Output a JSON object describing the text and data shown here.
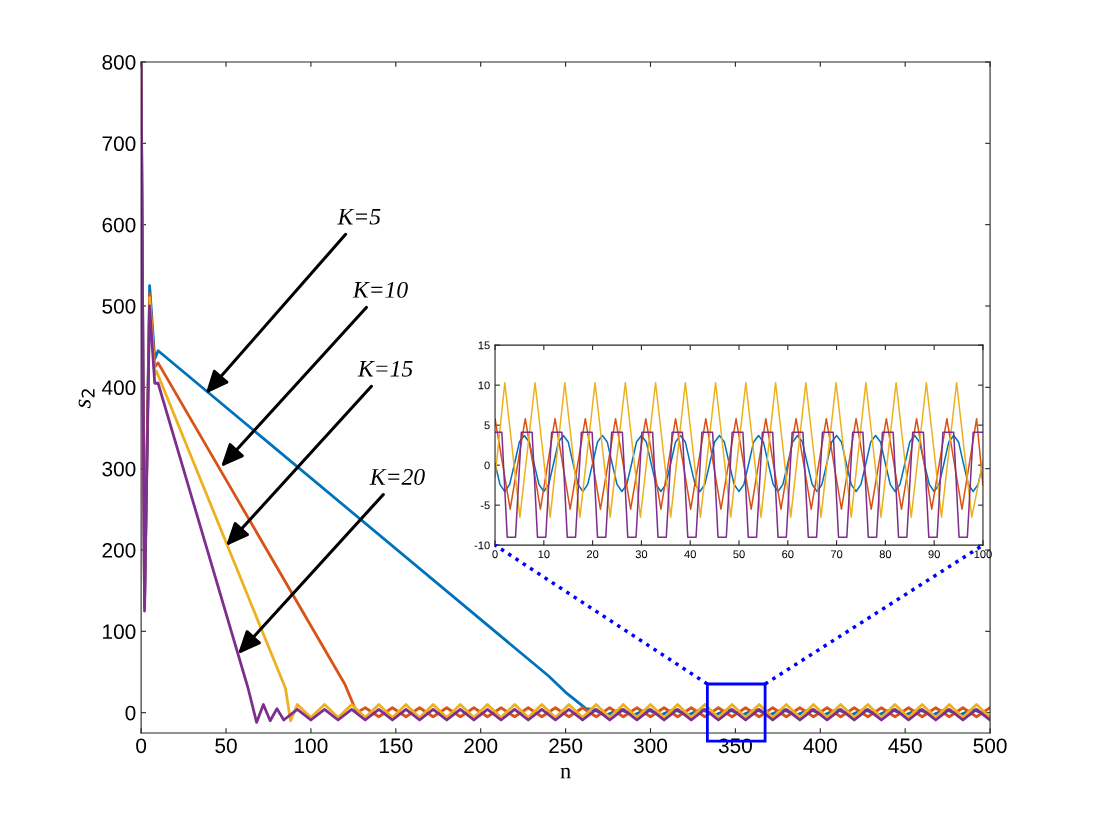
{
  "chart_data": [
    {
      "type": "line",
      "xlabel": "n",
      "ylabel": "s$_{2}$",
      "xlim": [
        0,
        500
      ],
      "ylim": [
        -25,
        800
      ],
      "xticks": [
        0,
        50,
        100,
        150,
        200,
        250,
        300,
        350,
        400,
        450,
        500
      ],
      "yticks": [
        0,
        100,
        200,
        300,
        400,
        500,
        600,
        700,
        800
      ],
      "grid": false,
      "legend": false,
      "annotations": [
        {
          "text": "K=5",
          "x": 38,
          "y": 392
        },
        {
          "text": "K=10",
          "x": 47,
          "y": 302
        },
        {
          "text": "K=15",
          "x": 50,
          "y": 205
        },
        {
          "text": "K=20",
          "x": 57,
          "y": 72
        }
      ],
      "series": [
        {
          "color": "#0072bd",
          "x": [
            0,
            2,
            5,
            8,
            10,
            240,
            250,
            262,
            266,
            274,
            282,
            290,
            298,
            306,
            314,
            322,
            330,
            338,
            346,
            354,
            362,
            370,
            378,
            386,
            394,
            402,
            410,
            418,
            426,
            434,
            442,
            450,
            458,
            466,
            474,
            482,
            490,
            498
          ],
          "values": [
            800,
            130,
            525,
            435,
            445,
            45,
            25,
            5,
            4,
            -3,
            4,
            -3,
            4,
            -3,
            4,
            -3,
            4,
            -3,
            4,
            -3,
            4,
            -3,
            4,
            -3,
            4,
            -3,
            4,
            -3,
            4,
            -3,
            4,
            -3,
            4,
            -3,
            4,
            -3,
            4,
            -3
          ]
        },
        {
          "color": "#d95319",
          "x": [
            0,
            2,
            5,
            8,
            10,
            120,
            127,
            132,
            140,
            148,
            156,
            164,
            172,
            180,
            188,
            196,
            204,
            212,
            220,
            228,
            236,
            244,
            252,
            260,
            268,
            276,
            284,
            292,
            300,
            308,
            316,
            324,
            332,
            340,
            348,
            356,
            364,
            372,
            380,
            388,
            396,
            404,
            412,
            420,
            428,
            436,
            444,
            452,
            460,
            468,
            476,
            484,
            492,
            500
          ],
          "values": [
            800,
            130,
            515,
            425,
            430,
            35,
            0,
            6,
            -5,
            6,
            -5,
            6,
            -5,
            6,
            -5,
            6,
            -5,
            6,
            -5,
            6,
            -5,
            6,
            -5,
            6,
            -5,
            6,
            -5,
            6,
            -5,
            6,
            -5,
            6,
            -5,
            6,
            -5,
            6,
            -5,
            6,
            -5,
            6,
            -5,
            6,
            -5,
            6,
            -5,
            6,
            -5,
            6,
            -5,
            6,
            -5,
            6,
            -5,
            6
          ]
        },
        {
          "color": "#edb120",
          "x": [
            5,
            8,
            9,
            85,
            88,
            92,
            100,
            108,
            116,
            124,
            132,
            140,
            148,
            156,
            164,
            172,
            180,
            188,
            196,
            204,
            212,
            220,
            228,
            236,
            244,
            252,
            260,
            268,
            276,
            284,
            292,
            300,
            308,
            316,
            324,
            332,
            340,
            348,
            356,
            364,
            372,
            380,
            388,
            396,
            404,
            412,
            420,
            428,
            436,
            444,
            452,
            460,
            468,
            476,
            484,
            492,
            500
          ],
          "values": [
            510,
            415,
            420,
            30,
            -10,
            10,
            -6,
            10,
            -6,
            10,
            -6,
            10,
            -6,
            10,
            -6,
            10,
            -6,
            10,
            -6,
            10,
            -6,
            10,
            -6,
            10,
            -6,
            10,
            -6,
            10,
            -6,
            10,
            -6,
            10,
            -6,
            10,
            -6,
            10,
            -6,
            10,
            -6,
            10,
            -6,
            10,
            -6,
            10,
            -6,
            10,
            -6,
            10,
            -6,
            10,
            -6,
            10,
            -6,
            10,
            -6,
            10,
            -6
          ]
        },
        {
          "color": "#7e2f8e",
          "x": [
            0,
            2,
            5,
            8,
            10,
            63,
            68,
            72,
            76,
            80,
            84,
            92,
            100,
            108,
            116,
            124,
            132,
            140,
            148,
            156,
            164,
            172,
            180,
            188,
            196,
            204,
            212,
            220,
            228,
            236,
            244,
            252,
            260,
            268,
            276,
            284,
            292,
            300,
            308,
            316,
            324,
            332,
            340,
            348,
            356,
            364,
            372,
            380,
            388,
            396,
            404,
            412,
            420,
            428,
            436,
            444,
            452,
            460,
            468,
            476,
            484,
            492,
            500
          ],
          "values": [
            800,
            125,
            500,
            405,
            405,
            30,
            -12,
            10,
            -10,
            5,
            -9,
            4,
            -9,
            4,
            -9,
            4,
            -9,
            4,
            -9,
            4,
            -9,
            4,
            -9,
            4,
            -9,
            4,
            -9,
            4,
            -9,
            4,
            -9,
            4,
            -9,
            4,
            -9,
            4,
            -9,
            4,
            -9,
            4,
            -9,
            4,
            -9,
            4,
            -9,
            4,
            -9,
            4,
            -9,
            4,
            -9,
            4,
            -9,
            4,
            -9,
            4,
            -9,
            4,
            -9,
            4,
            -9,
            4,
            -9
          ]
        }
      ]
    },
    {
      "type": "line",
      "xlim": [
        0,
        100
      ],
      "ylim": [
        -10,
        15
      ],
      "xticks": [
        0,
        10,
        20,
        30,
        40,
        50,
        60,
        70,
        80,
        90,
        100
      ],
      "yticks": [
        -10,
        -5,
        0,
        5,
        10,
        15
      ],
      "grid": false,
      "legend": false,
      "series": [
        {
          "color": "#0072bd",
          "x": [
            0,
            1,
            2,
            3,
            4,
            5,
            6,
            7,
            8,
            9,
            10,
            11,
            12,
            13,
            14,
            15,
            16,
            17,
            18,
            19,
            20,
            21,
            22,
            23,
            24,
            25,
            26,
            27,
            28,
            29,
            30,
            31,
            32,
            33,
            34,
            35,
            36,
            37,
            38,
            39,
            40,
            41,
            42,
            43,
            44,
            45,
            46,
            47,
            48,
            49,
            50,
            51,
            52,
            53,
            54,
            55,
            56,
            57,
            58,
            59,
            60,
            61,
            62,
            63,
            64,
            65,
            66,
            67,
            68,
            69,
            70,
            71,
            72,
            73,
            74,
            75,
            76,
            77,
            78,
            79,
            80,
            81,
            82,
            83,
            84,
            85,
            86,
            87,
            88,
            89,
            90,
            91,
            92,
            93,
            94,
            95,
            96,
            97,
            98,
            99,
            100
          ],
          "values": [
            0.2,
            -2.4,
            -3.3,
            -2.4,
            0.2,
            2.9,
            3.7,
            2.9,
            0.2,
            -2.4,
            -3.3,
            -2.4,
            0.2,
            2.9,
            3.7,
            2.9,
            0.2,
            -2.4,
            -3.3,
            -2.4,
            0.2,
            2.9,
            3.7,
            2.9,
            0.2,
            -2.4,
            -3.3,
            -2.4,
            0.2,
            2.9,
            3.7,
            2.9,
            0.2,
            -2.4,
            -3.3,
            -2.4,
            0.2,
            2.9,
            3.7,
            2.9,
            0.2,
            -2.4,
            -3.3,
            -2.4,
            0.2,
            2.9,
            3.7,
            2.9,
            0.2,
            -2.4,
            -3.3,
            -2.4,
            0.2,
            2.9,
            3.7,
            2.9,
            0.2,
            -2.4,
            -3.3,
            -2.4,
            0.2,
            2.9,
            3.7,
            2.9,
            0.2,
            -2.4,
            -3.3,
            -2.4,
            0.2,
            2.9,
            3.7,
            2.9,
            0.2,
            -2.4,
            -3.3,
            -2.4,
            0.2,
            2.9,
            3.7,
            2.9,
            0.2,
            -2.4,
            -3.3,
            -2.4,
            0.2,
            2.9,
            3.7,
            2.9,
            0.2,
            -2.4,
            -3.3,
            -2.4,
            0.2,
            2.9,
            3.7,
            2.9,
            0.2,
            -2.4,
            -3.3,
            -2.4,
            0.2
          ]
        },
        {
          "color": "#d95319",
          "x": [
            0,
            3.1,
            6.2,
            9.3,
            12.3,
            15.4,
            18.5,
            21.6,
            24.7,
            27.8,
            30.9,
            34.0,
            37.0,
            40.1,
            43.2,
            46.3,
            49.4,
            52.5,
            55.5,
            58.6,
            61.7,
            64.8,
            67.9,
            71.0,
            74.0,
            77.1,
            80.2,
            83.3,
            86.4,
            89.5,
            92.6,
            95.7,
            98.7,
            100
          ],
          "values": [
            5.8,
            -5.5,
            5.8,
            -5.5,
            5.8,
            -5.5,
            5.8,
            -5.5,
            5.8,
            -5.5,
            5.8,
            -5.5,
            5.8,
            -5.5,
            5.8,
            -5.5,
            5.8,
            -5.5,
            5.8,
            -5.5,
            5.8,
            -5.5,
            5.8,
            -5.5,
            5.8,
            -5.5,
            5.8,
            -5.5,
            5.8,
            -5.5,
            5.8,
            -5.5,
            5.8,
            -2.5
          ]
        },
        {
          "color": "#edb120",
          "x": [
            0,
            2.0,
            5.1,
            8.2,
            11.3,
            14.3,
            17.4,
            20.5,
            23.6,
            26.7,
            29.8,
            32.9,
            36.0,
            39.0,
            42.1,
            45.2,
            48.3,
            51.4,
            54.5,
            57.5,
            60.6,
            63.7,
            66.8,
            69.9,
            73.0,
            76.0,
            79.1,
            82.2,
            85.3,
            88.4,
            91.5,
            94.6,
            97.7,
            100
          ],
          "values": [
            -1.5,
            10.3,
            -6.5,
            10.3,
            -6.5,
            10.3,
            -6.5,
            10.3,
            -6.5,
            10.3,
            -6.5,
            10.3,
            -6.5,
            10.3,
            -6.5,
            10.3,
            -6.5,
            10.3,
            -6.5,
            10.3,
            -6.5,
            10.3,
            -6.5,
            10.3,
            -6.5,
            10.3,
            -6.5,
            10.3,
            -6.5,
            10.3,
            -6.5,
            10.3,
            -6.5,
            0.5
          ]
        },
        {
          "color": "#7e2f8e",
          "x": [
            0,
            1.4,
            2.5,
            4.2,
            5.4,
            7.6,
            8.7,
            10.4,
            11.6,
            13.7,
            14.8,
            16.5,
            17.7,
            19.9,
            21.0,
            22.7,
            23.9,
            26.1,
            27.2,
            28.9,
            30.1,
            32.3,
            33.4,
            35.1,
            36.3,
            38.4,
            39.5,
            41.2,
            42.4,
            44.6,
            45.7,
            47.4,
            48.6,
            50.8,
            51.9,
            53.6,
            54.8,
            56.9,
            58.0,
            59.7,
            60.9,
            63.1,
            64.2,
            65.9,
            67.1,
            69.3,
            70.4,
            72.1,
            73.3,
            75.4,
            76.5,
            78.2,
            79.4,
            81.6,
            82.7,
            84.4,
            85.6,
            87.8,
            88.9,
            90.6,
            91.8,
            94.0,
            95.1,
            96.8,
            98.0,
            100
          ],
          "values": [
            4.1,
            4.1,
            -9,
            -9,
            4.1,
            4.1,
            -9,
            -9,
            4.1,
            4.1,
            -9,
            -9,
            4.1,
            4.1,
            -9,
            -9,
            4.1,
            4.1,
            -9,
            -9,
            4.1,
            4.1,
            -9,
            -9,
            4.1,
            4.1,
            -9,
            -9,
            4.1,
            4.1,
            -9,
            -9,
            4.1,
            4.1,
            -9,
            -9,
            4.1,
            4.1,
            -9,
            -9,
            4.1,
            4.1,
            -9,
            -9,
            4.1,
            4.1,
            -9,
            -9,
            4.1,
            4.1,
            -9,
            -9,
            4.1,
            4.1,
            -9,
            -9,
            4.1,
            4.1,
            -9,
            -9,
            4.1,
            4.1,
            -9,
            -9,
            4.1,
            4.1
          ]
        }
      ]
    }
  ]
}
